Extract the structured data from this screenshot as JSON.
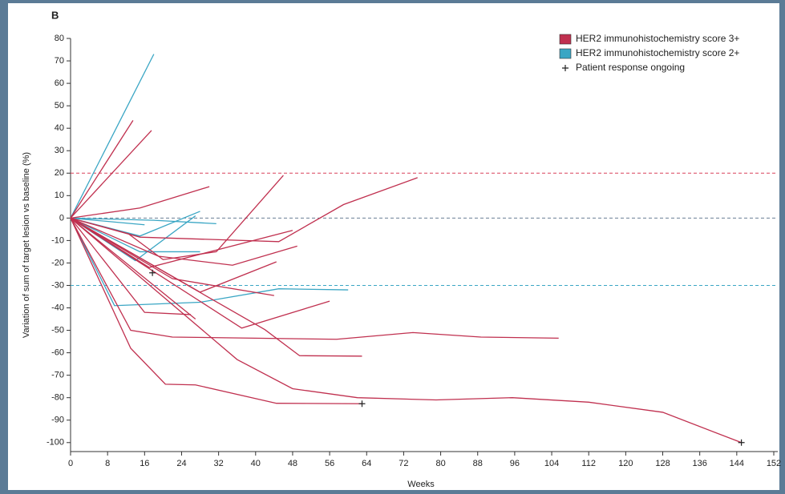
{
  "chart_data": {
    "type": "line",
    "panel_label": "B",
    "xlabel": "Weeks",
    "ylabel": "Variation of sum of target lesion vs baseline (%)",
    "xlim": [
      0,
      152
    ],
    "ylim": [
      -104,
      80
    ],
    "xticks": [
      0,
      8,
      16,
      24,
      32,
      40,
      48,
      56,
      64,
      72,
      80,
      88,
      96,
      104,
      112,
      120,
      128,
      136,
      144,
      152
    ],
    "yticks": [
      -100,
      -90,
      -80,
      -70,
      -60,
      -50,
      -40,
      -30,
      -20,
      -10,
      0,
      10,
      20,
      30,
      40,
      50,
      60,
      70,
      80
    ],
    "legend_position": "upper right",
    "legend": [
      {
        "label": "HER2 immunohistochemistry score 3+",
        "color": "#c0304f"
      },
      {
        "label": "HER2 immunohistochemistry score 2+",
        "color": "#3aa6c4"
      },
      {
        "label": "Patient response ongoing",
        "symbol": "+"
      }
    ],
    "hlines": [
      {
        "value": 20,
        "color": "#d9405a"
      },
      {
        "value": 0,
        "color": "#6a7f94"
      },
      {
        "value": -30,
        "color": "#3aa6c4"
      }
    ],
    "series": [
      {
        "color": "#3aa6c4",
        "x": [
          0,
          18
        ],
        "values": [
          0,
          73
        ]
      },
      {
        "color": "#3aa6c4",
        "x": [
          0,
          15,
          28
        ],
        "values": [
          0,
          -8,
          3
        ]
      },
      {
        "color": "#3aa6c4",
        "x": [
          0,
          16
        ],
        "values": [
          0,
          -3
        ]
      },
      {
        "color": "#3aa6c4",
        "x": [
          0,
          18,
          31.5
        ],
        "values": [
          0,
          -1,
          -2.5
        ]
      },
      {
        "color": "#3aa6c4",
        "x": [
          0,
          15,
          28
        ],
        "values": [
          0,
          -15,
          -15
        ]
      },
      {
        "color": "#3aa6c4",
        "x": [
          0,
          14,
          27
        ],
        "values": [
          0,
          -19,
          1
        ]
      },
      {
        "color": "#3aa6c4",
        "x": [
          0,
          9.5,
          28,
          45,
          60
        ],
        "values": [
          0,
          -39,
          -37.5,
          -31.5,
          -32
        ]
      },
      {
        "color": "#c0304f",
        "x": [
          0,
          13.5
        ],
        "values": [
          0,
          43.5
        ]
      },
      {
        "color": "#c0304f",
        "x": [
          0,
          17.5
        ],
        "values": [
          0,
          39
        ]
      },
      {
        "color": "#c0304f",
        "x": [
          0,
          15,
          30
        ],
        "values": [
          0,
          4.5,
          14
        ]
      },
      {
        "color": "#c0304f",
        "x": [
          0,
          12.5,
          20,
          31.5,
          46
        ],
        "values": [
          0,
          -7,
          -18.5,
          -15,
          19
        ]
      },
      {
        "color": "#c0304f",
        "x": [
          0,
          15,
          45,
          59,
          75
        ],
        "values": [
          0,
          -8.5,
          -10.5,
          6,
          18
        ]
      },
      {
        "color": "#c0304f",
        "x": [
          0,
          17,
          48
        ],
        "values": [
          0,
          -22,
          -5.5
        ]
      },
      {
        "color": "#c0304f",
        "x": [
          0,
          19,
          35,
          49
        ],
        "values": [
          0,
          -17,
          -21,
          -12.5
        ]
      },
      {
        "color": "#c0304f",
        "x": [
          0,
          28,
          44.5
        ],
        "values": [
          0,
          -33,
          -19.5
        ]
      },
      {
        "color": "#c0304f",
        "x": [
          0,
          22,
          44
        ],
        "values": [
          0,
          -27,
          -34.5
        ]
      },
      {
        "color": "#c0304f",
        "x": [
          0,
          37,
          56
        ],
        "values": [
          0,
          -49,
          -37
        ]
      },
      {
        "color": "#c0304f",
        "x": [
          0,
          13,
          22,
          57.5,
          74,
          88.7,
          105.5
        ],
        "values": [
          0,
          -50,
          -53,
          -54,
          -51,
          -53,
          -53.5
        ]
      },
      {
        "color": "#c0304f",
        "x": [
          0,
          16,
          26
        ],
        "values": [
          0,
          -42,
          -43
        ]
      },
      {
        "color": "#c0304f",
        "x": [
          0,
          27
        ],
        "values": [
          0,
          -45
        ]
      },
      {
        "color": "#c0304f",
        "x": [
          0,
          36,
          48,
          62,
          79,
          95.5,
          112,
          128,
          145
        ],
        "values": [
          0,
          -63,
          -76,
          -80,
          -81,
          -80,
          -82,
          -86.5,
          -100
        ]
      },
      {
        "color": "#c0304f",
        "x": [
          0,
          13,
          20.5,
          27,
          44.5,
          63
        ],
        "values": [
          0,
          -58,
          -74,
          -74.3,
          -82.5,
          -82.7
        ]
      },
      {
        "color": "#c0304f",
        "x": [
          0,
          42,
          49.5,
          63
        ],
        "values": [
          0,
          -49.7,
          -61.3,
          -61.5
        ]
      }
    ],
    "ongoing": {
      "x": [
        17.7,
        63,
        145
      ],
      "values": [
        -24.4,
        -82.7,
        -100
      ]
    }
  }
}
